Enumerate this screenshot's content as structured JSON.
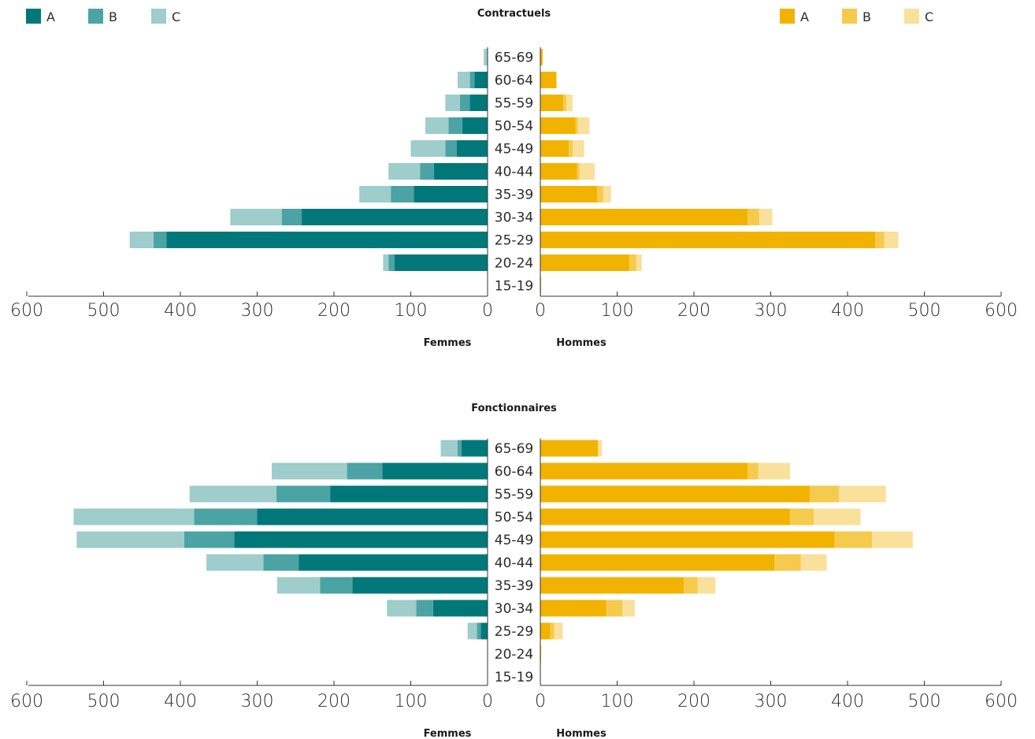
{
  "legend": {
    "femmes": [
      {
        "label": "A",
        "color": "#00787A"
      },
      {
        "label": "B",
        "color": "#4BA3A3"
      },
      {
        "label": "C",
        "color": "#9ECDCB"
      }
    ],
    "hommes": [
      {
        "label": "A",
        "color": "#F2B300"
      },
      {
        "label": "B",
        "color": "#F6CA4C"
      },
      {
        "label": "C",
        "color": "#F9E09B"
      }
    ]
  },
  "chart_data": [
    {
      "type": "bar",
      "title": "Contractuels",
      "left_label": "Femmes",
      "right_label": "Hommes",
      "categories": [
        "65-69",
        "60-64",
        "55-59",
        "50-54",
        "45-49",
        "40-44",
        "35-39",
        "30-34",
        "25-29",
        "20-24",
        "15-19"
      ],
      "ticks_left": [
        "600",
        "500",
        "400",
        "300",
        "200",
        "100",
        "0"
      ],
      "ticks_right": [
        "0",
        "100",
        "200",
        "300",
        "400",
        "500",
        "600"
      ],
      "xlim": [
        0,
        600
      ],
      "series": [
        {
          "name": "A",
          "side": "Femmes",
          "values": [
            0,
            17,
            23,
            33,
            40,
            70,
            96,
            242,
            418,
            121,
            0
          ]
        },
        {
          "name": "B",
          "side": "Femmes",
          "values": [
            0,
            6,
            13,
            18,
            15,
            18,
            30,
            26,
            17,
            8,
            0
          ]
        },
        {
          "name": "C",
          "side": "Femmes",
          "values": [
            5,
            16,
            19,
            30,
            45,
            41,
            41,
            67,
            31,
            7,
            0
          ]
        },
        {
          "name": "A",
          "side": "Hommes",
          "values": [
            3,
            21,
            30,
            46,
            37,
            48,
            74,
            270,
            436,
            116,
            1
          ]
        },
        {
          "name": "B",
          "side": "Hommes",
          "values": [
            0,
            0,
            4,
            3,
            5,
            3,
            8,
            15,
            12,
            9,
            0
          ]
        },
        {
          "name": "C",
          "side": "Hommes",
          "values": [
            0,
            0,
            8,
            15,
            15,
            20,
            10,
            17,
            18,
            7,
            0
          ]
        }
      ]
    },
    {
      "type": "bar",
      "title": "Fonctionnaires",
      "left_label": "Femmes",
      "right_label": "Hommes",
      "categories": [
        "65-69",
        "60-64",
        "55-59",
        "50-54",
        "45-49",
        "40-44",
        "35-39",
        "30-34",
        "25-29",
        "20-24",
        "15-19"
      ],
      "ticks_left": [
        "600",
        "500",
        "400",
        "300",
        "200",
        "100",
        "0"
      ],
      "ticks_right": [
        "0",
        "100",
        "200",
        "300",
        "400",
        "500",
        "600"
      ],
      "xlim": [
        0,
        600
      ],
      "series": [
        {
          "name": "A",
          "side": "Femmes",
          "values": [
            34,
            137,
            205,
            300,
            330,
            246,
            176,
            71,
            9,
            0,
            0
          ]
        },
        {
          "name": "B",
          "side": "Femmes",
          "values": [
            5,
            46,
            70,
            82,
            65,
            46,
            42,
            22,
            5,
            0,
            0
          ]
        },
        {
          "name": "C",
          "side": "Femmes",
          "values": [
            22,
            98,
            113,
            157,
            140,
            74,
            56,
            38,
            12,
            0,
            0
          ]
        },
        {
          "name": "A",
          "side": "Hommes",
          "values": [
            75,
            270,
            351,
            325,
            383,
            305,
            187,
            86,
            13,
            1,
            0
          ]
        },
        {
          "name": "B",
          "side": "Hommes",
          "values": [
            0,
            14,
            38,
            31,
            49,
            34,
            18,
            21,
            5,
            0,
            0
          ]
        },
        {
          "name": "C",
          "side": "Hommes",
          "values": [
            5,
            41,
            61,
            61,
            53,
            34,
            23,
            16,
            11,
            0,
            0
          ]
        }
      ]
    }
  ]
}
